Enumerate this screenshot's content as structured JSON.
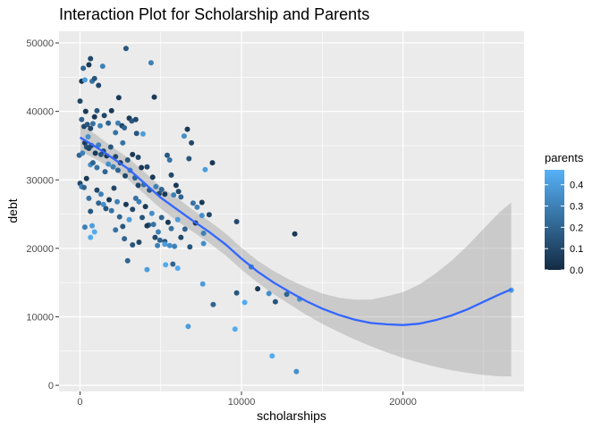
{
  "chart_data": {
    "type": "scatter",
    "title": "Interaction Plot for Scholarship and Parents",
    "xlabel": "scholarships",
    "ylabel": "debt",
    "xlim": [
      -1300,
      27500
    ],
    "ylim": [
      -900,
      51700
    ],
    "x_ticks": [
      0,
      10000,
      20000
    ],
    "y_ticks": [
      0,
      10000,
      20000,
      30000,
      40000,
      50000
    ],
    "x_tick_labels": [
      "0",
      "10000",
      "20000"
    ],
    "y_tick_labels": [
      "0",
      "10000",
      "20000",
      "30000",
      "40000",
      "50000"
    ],
    "grid": true,
    "legend": {
      "title": "parents",
      "position": "right",
      "min": 0.0,
      "max": 0.47,
      "ticks": [
        0.0,
        0.1,
        0.2,
        0.3,
        0.4
      ],
      "tick_labels": [
        "0.0",
        "0.1",
        "0.2",
        "0.3",
        "0.4"
      ],
      "low_color": "#132b43",
      "high_color": "#56b1f7"
    },
    "points": [
      [
        0,
        41500,
        0.1
      ],
      [
        100,
        44400,
        0.05
      ],
      [
        200,
        46300,
        0.2
      ],
      [
        300,
        44600,
        0.4
      ],
      [
        550,
        46800,
        0.05
      ],
      [
        650,
        47700,
        0.1
      ],
      [
        750,
        44400,
        0.25
      ],
      [
        900,
        44800,
        0.15
      ],
      [
        1150,
        43800,
        0.1
      ],
      [
        1400,
        46600,
        0.3
      ],
      [
        2400,
        42000,
        0.05
      ],
      [
        2850,
        49200,
        0.15
      ],
      [
        4400,
        47100,
        0.3
      ],
      [
        4600,
        42100,
        0.05
      ],
      [
        100,
        38800,
        0.2
      ],
      [
        250,
        37800,
        0.1
      ],
      [
        350,
        40000,
        0.05
      ],
      [
        450,
        38100,
        0.15
      ],
      [
        500,
        36300,
        0.35
      ],
      [
        650,
        37500,
        0.1
      ],
      [
        800,
        38200,
        0.25
      ],
      [
        900,
        39200,
        0.05
      ],
      [
        1050,
        40100,
        0.15
      ],
      [
        1250,
        37900,
        0.3
      ],
      [
        1500,
        39400,
        0.1
      ],
      [
        1750,
        38300,
        0.2
      ],
      [
        1950,
        40100,
        0.05
      ],
      [
        2200,
        36900,
        0.25
      ],
      [
        2350,
        38300,
        0.3
      ],
      [
        2600,
        37900,
        0.1
      ],
      [
        2750,
        37600,
        0.2
      ],
      [
        3050,
        39000,
        0.05
      ],
      [
        3200,
        38600,
        0.15
      ],
      [
        3450,
        38800,
        0.1
      ],
      [
        3900,
        36700,
        0.4
      ],
      [
        3500,
        36800,
        0.15
      ],
      [
        3600,
        33300,
        0.1
      ],
      [
        -50,
        33600,
        0.2
      ],
      [
        150,
        33900,
        0.3
      ],
      [
        300,
        35400,
        0.05
      ],
      [
        400,
        34800,
        0.15
      ],
      [
        550,
        34600,
        0.1
      ],
      [
        650,
        32200,
        0.35
      ],
      [
        700,
        35000,
        0.1
      ],
      [
        800,
        32500,
        0.2
      ],
      [
        950,
        33900,
        0.05
      ],
      [
        1050,
        31800,
        0.25
      ],
      [
        1150,
        35100,
        0.3
      ],
      [
        1300,
        33700,
        0.15
      ],
      [
        1450,
        34200,
        0.1
      ],
      [
        1550,
        31200,
        0.2
      ],
      [
        1650,
        33500,
        0.05
      ],
      [
        1750,
        32300,
        0.35
      ],
      [
        1900,
        34800,
        0.15
      ],
      [
        2050,
        31900,
        0.3
      ],
      [
        2200,
        33400,
        0.1
      ],
      [
        2350,
        31400,
        0.2
      ],
      [
        2500,
        32500,
        0.05
      ],
      [
        2650,
        35400,
        0.25
      ],
      [
        2800,
        30600,
        0.1
      ],
      [
        2950,
        32900,
        0.15
      ],
      [
        3100,
        31400,
        0.3
      ],
      [
        3250,
        33700,
        0.05
      ],
      [
        3400,
        30300,
        0.2
      ],
      [
        3600,
        29200,
        0.1
      ],
      [
        3800,
        31800,
        0.05
      ],
      [
        3950,
        29300,
        0.25
      ],
      [
        4150,
        31900,
        0.1
      ],
      [
        4300,
        28500,
        0.15
      ],
      [
        4500,
        30400,
        0.05
      ],
      [
        4700,
        29000,
        0.3
      ],
      [
        4900,
        28000,
        0.1
      ],
      [
        5050,
        28600,
        0.2
      ],
      [
        5250,
        27900,
        0.05
      ],
      [
        5400,
        33600,
        0.15
      ],
      [
        5550,
        32900,
        0.25
      ],
      [
        5650,
        30700,
        0.1
      ],
      [
        5800,
        27800,
        0.3
      ],
      [
        5950,
        29200,
        0.05
      ],
      [
        6100,
        28300,
        0.1
      ],
      [
        6250,
        27500,
        0.2
      ],
      [
        6450,
        36400,
        0.35
      ],
      [
        6650,
        37400,
        0.05
      ],
      [
        6750,
        33100,
        0.15
      ],
      [
        6900,
        35400,
        0.1
      ],
      [
        7000,
        26600,
        0.25
      ],
      [
        7250,
        26000,
        0.3
      ],
      [
        7550,
        26700,
        0.05
      ],
      [
        7750,
        31500,
        0.4
      ],
      [
        8200,
        32500,
        0.05
      ],
      [
        0,
        29500,
        0.1
      ],
      [
        100,
        29000,
        0.3
      ],
      [
        250,
        28900,
        0.2
      ],
      [
        400,
        30200,
        0.05
      ],
      [
        550,
        27300,
        0.25
      ],
      [
        650,
        25400,
        0.15
      ],
      [
        750,
        23300,
        0.4
      ],
      [
        900,
        22400,
        0.45
      ],
      [
        1050,
        28500,
        0.1
      ],
      [
        1150,
        26600,
        0.2
      ],
      [
        1300,
        27900,
        0.3
      ],
      [
        1450,
        26400,
        0.35
      ],
      [
        1600,
        25800,
        0.15
      ],
      [
        1800,
        27100,
        0.05
      ],
      [
        1950,
        25500,
        0.25
      ],
      [
        2100,
        28800,
        0.1
      ],
      [
        2300,
        26800,
        0.3
      ],
      [
        2450,
        24600,
        0.2
      ],
      [
        2650,
        23200,
        0.15
      ],
      [
        2850,
        26400,
        0.05
      ],
      [
        3050,
        24200,
        0.4
      ],
      [
        3250,
        25700,
        0.1
      ],
      [
        3450,
        27300,
        0.25
      ],
      [
        3650,
        26800,
        0.3
      ],
      [
        3850,
        24500,
        0.15
      ],
      [
        4050,
        26100,
        0.05
      ],
      [
        4250,
        23400,
        0.2
      ],
      [
        4450,
        25100,
        0.35
      ],
      [
        4650,
        21600,
        0.1
      ],
      [
        4850,
        22400,
        0.3
      ],
      [
        5050,
        24500,
        0.2
      ],
      [
        5250,
        21000,
        0.15
      ],
      [
        5450,
        23800,
        0.05
      ],
      [
        5650,
        22900,
        0.25
      ],
      [
        5850,
        20300,
        0.3
      ],
      [
        6050,
        24200,
        0.4
      ],
      [
        6250,
        21600,
        0.1
      ],
      [
        6500,
        22800,
        0.2
      ],
      [
        6800,
        20200,
        0.15
      ],
      [
        7150,
        23700,
        0.05
      ],
      [
        7550,
        24800,
        0.35
      ],
      [
        7650,
        22200,
        0.3
      ],
      [
        8000,
        24900,
        0.1
      ],
      [
        300,
        23100,
        0.3
      ],
      [
        650,
        21600,
        0.45
      ],
      [
        2200,
        22700,
        0.25
      ],
      [
        2750,
        21400,
        0.2
      ],
      [
        3250,
        20500,
        0.15
      ],
      [
        3650,
        20900,
        0.1
      ],
      [
        4150,
        23300,
        0.05
      ],
      [
        4550,
        23500,
        0.25
      ],
      [
        4800,
        20400,
        0.3
      ],
      [
        4950,
        21200,
        0.2
      ],
      [
        5250,
        20600,
        0.4
      ],
      [
        5550,
        20400,
        0.35
      ],
      [
        4150,
        16900,
        0.4
      ],
      [
        5300,
        17600,
        0.45
      ],
      [
        5750,
        17700,
        0.2
      ],
      [
        6050,
        17100,
        0.45
      ],
      [
        2950,
        18200,
        0.2
      ],
      [
        7650,
        20700,
        0.35
      ],
      [
        7600,
        14800,
        0.4
      ],
      [
        8250,
        11800,
        0.2
      ],
      [
        9700,
        13500,
        0.15
      ],
      [
        10200,
        12100,
        0.45
      ],
      [
        10600,
        17300,
        0.3
      ],
      [
        11000,
        14100,
        0.05
      ],
      [
        11700,
        13400,
        0.35
      ],
      [
        12100,
        12200,
        0.15
      ],
      [
        12800,
        13300,
        0.2
      ],
      [
        13300,
        22100,
        0.05
      ],
      [
        13600,
        12600,
        0.35
      ],
      [
        9700,
        23900,
        0.1
      ],
      [
        6700,
        8600,
        0.4
      ],
      [
        9600,
        8200,
        0.45
      ],
      [
        11900,
        4300,
        0.45
      ],
      [
        13400,
        2000,
        0.35
      ],
      [
        26700,
        13900,
        0.4
      ]
    ],
    "smooth_fit": {
      "x": [
        0,
        1000,
        2000,
        3000,
        4000,
        5000,
        6000,
        7000,
        8000,
        9000,
        10000,
        11000,
        12000,
        13000,
        14000,
        15000,
        16000,
        17000,
        18000,
        19000,
        20000,
        21000,
        22000,
        23000,
        24000,
        25000,
        26000,
        26700
      ],
      "y": [
        36200,
        34800,
        33200,
        31600,
        29500,
        27400,
        25700,
        24000,
        22400,
        20600,
        18500,
        16600,
        15000,
        13600,
        12300,
        11200,
        10300,
        9600,
        9100,
        8900,
        8800,
        9000,
        9500,
        10200,
        11100,
        12200,
        13300,
        14000
      ],
      "lower": [
        34200,
        33000,
        31600,
        30000,
        27900,
        25800,
        24000,
        22400,
        20800,
        19000,
        16900,
        15000,
        13300,
        11800,
        10300,
        9000,
        7800,
        6700,
        5700,
        4800,
        4000,
        3300,
        2700,
        2200,
        1800,
        1500,
        1300,
        1300
      ],
      "upper": [
        38200,
        36600,
        34800,
        33200,
        31100,
        29000,
        27400,
        25600,
        24000,
        22200,
        20100,
        18200,
        16700,
        15400,
        14300,
        13400,
        12800,
        12500,
        12500,
        13000,
        13600,
        14700,
        16300,
        18200,
        20400,
        22900,
        25300,
        26700
      ],
      "line_color": "#3366ff",
      "band_color": "#999999"
    }
  }
}
